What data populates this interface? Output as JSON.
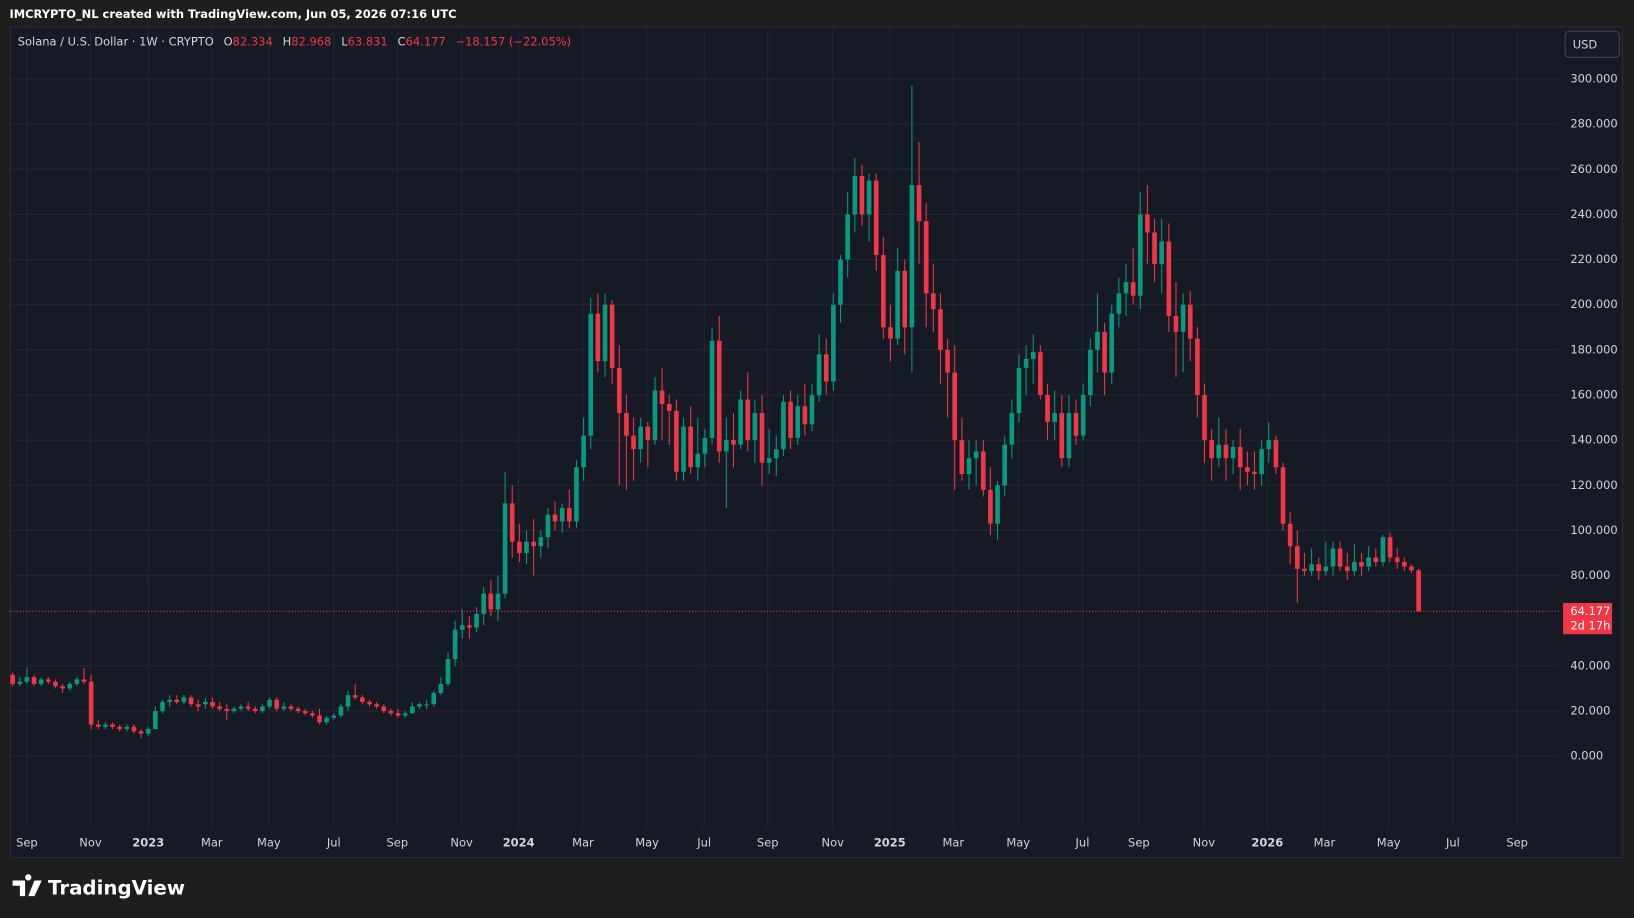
{
  "header": {
    "credit": "IMCRYPTO_NL created with TradingView.com, Jun 05, 2026 07:16 UTC",
    "logo": "TradingView"
  },
  "chart_data": {
    "type": "candlestick",
    "title": "Solana / U.S. Dollar · 1W · CRYPTO",
    "ohlc_letters": [
      "O",
      "H",
      "L",
      "C"
    ],
    "change": "−18.157 (−22.05%)",
    "currency": "USD",
    "countdown": "2d 17h",
    "up_color": "#089981",
    "down_color": "#f23645",
    "grid": true,
    "xlim": [
      -0.3,
      216.8
    ],
    "ylim": [
      -32,
      323
    ],
    "xticks": [
      {
        "value": 2.0,
        "label": "Sep"
      },
      {
        "value": 10.9,
        "label": "Nov"
      },
      {
        "value": 19.0,
        "label": "2023"
      },
      {
        "value": 27.9,
        "label": "Mar"
      },
      {
        "value": 35.9,
        "label": "May"
      },
      {
        "value": 45.0,
        "label": "Jul"
      },
      {
        "value": 53.9,
        "label": "Sep"
      },
      {
        "value": 62.9,
        "label": "Nov"
      },
      {
        "value": 70.9,
        "label": "2024"
      },
      {
        "value": 79.9,
        "label": "Mar"
      },
      {
        "value": 88.9,
        "label": "May"
      },
      {
        "value": 96.9,
        "label": "Jul"
      },
      {
        "value": 105.8,
        "label": "Sep"
      },
      {
        "value": 114.9,
        "label": "Nov"
      },
      {
        "value": 122.9,
        "label": "2025"
      },
      {
        "value": 131.8,
        "label": "Mar"
      },
      {
        "value": 140.9,
        "label": "May"
      },
      {
        "value": 149.9,
        "label": "Jul"
      },
      {
        "value": 157.8,
        "label": "Sep"
      },
      {
        "value": 166.9,
        "label": "Nov"
      },
      {
        "value": 175.8,
        "label": "2026"
      },
      {
        "value": 183.8,
        "label": "Mar"
      },
      {
        "value": 192.8,
        "label": "May"
      },
      {
        "value": 201.8,
        "label": "Jul"
      },
      {
        "value": 210.8,
        "label": "Sep"
      }
    ],
    "yticks": [
      {
        "value": 0,
        "label": "0.000"
      },
      {
        "value": 20,
        "label": "20.000"
      },
      {
        "value": 40,
        "label": "40.000"
      },
      {
        "value": 80,
        "label": "80.000"
      },
      {
        "value": 100,
        "label": "100.000"
      },
      {
        "value": 120,
        "label": "120.000"
      },
      {
        "value": 140,
        "label": "140.000"
      },
      {
        "value": 160,
        "label": "160.000"
      },
      {
        "value": 180,
        "label": "180.000"
      },
      {
        "value": 200,
        "label": "200.000"
      },
      {
        "value": 220,
        "label": "220.000"
      },
      {
        "value": 240,
        "label": "240.000"
      },
      {
        "value": 260,
        "label": "260.000"
      },
      {
        "value": 280,
        "label": "280.000"
      },
      {
        "value": 300,
        "label": "300.000"
      }
    ],
    "candles": [
      [
        36,
        37,
        31,
        32
      ],
      [
        32,
        35,
        31,
        33
      ],
      [
        33,
        39,
        32,
        35
      ],
      [
        35,
        36,
        31,
        32
      ],
      [
        32,
        35,
        31,
        34
      ],
      [
        34,
        35,
        32,
        33
      ],
      [
        33,
        34,
        30,
        31
      ],
      [
        31,
        32,
        28,
        30
      ],
      [
        30,
        33,
        29,
        32
      ],
      [
        32,
        35,
        31,
        34
      ],
      [
        34,
        39,
        32,
        33
      ],
      [
        33,
        36,
        12,
        14
      ],
      [
        14,
        16,
        12,
        13
      ],
      [
        13,
        15,
        12,
        14
      ],
      [
        14,
        15,
        12,
        13
      ],
      [
        13,
        14,
        11,
        12
      ],
      [
        12,
        14,
        11,
        13
      ],
      [
        13,
        14,
        10,
        11
      ],
      [
        11,
        12,
        8,
        10
      ],
      [
        10,
        13,
        9,
        12
      ],
      [
        12,
        22,
        12,
        20
      ],
      [
        20,
        25,
        19,
        24
      ],
      [
        24,
        27,
        22,
        25
      ],
      [
        25,
        27,
        23,
        24
      ],
      [
        24,
        27,
        23,
        26
      ],
      [
        26,
        27,
        22,
        23
      ],
      [
        23,
        25,
        20,
        22
      ],
      [
        23,
        26,
        21,
        24
      ],
      [
        24,
        26,
        21,
        22
      ],
      [
        22,
        24,
        20,
        21
      ],
      [
        21,
        23,
        16,
        20
      ],
      [
        20,
        22,
        19,
        21
      ],
      [
        21,
        23,
        20,
        22
      ],
      [
        22,
        24,
        20,
        21
      ],
      [
        21,
        22,
        19,
        20
      ],
      [
        20,
        23,
        19,
        22
      ],
      [
        22,
        26,
        21,
        25
      ],
      [
        25,
        26,
        20,
        21
      ],
      [
        21,
        24,
        20,
        22
      ],
      [
        22,
        23,
        20,
        21
      ],
      [
        21,
        22,
        19,
        20
      ],
      [
        20,
        21,
        18,
        19
      ],
      [
        19,
        20,
        17,
        18
      ],
      [
        18,
        21,
        14,
        15
      ],
      [
        15,
        18,
        14,
        17
      ],
      [
        17,
        19,
        16,
        18
      ],
      [
        18,
        23,
        17,
        22
      ],
      [
        22,
        29,
        20,
        27
      ],
      [
        27,
        32,
        25,
        26
      ],
      [
        26,
        27,
        23,
        24
      ],
      [
        24,
        25,
        22,
        23
      ],
      [
        23,
        24,
        21,
        22
      ],
      [
        22,
        23,
        19,
        20
      ],
      [
        20,
        21,
        18,
        19
      ],
      [
        19,
        21,
        17,
        18
      ],
      [
        18,
        20,
        17,
        19
      ],
      [
        19,
        24,
        19,
        22
      ],
      [
        22,
        24,
        21,
        23
      ],
      [
        23,
        25,
        21,
        23
      ],
      [
        23,
        29,
        22,
        28
      ],
      [
        28,
        35,
        27,
        32
      ],
      [
        32,
        46,
        31,
        43
      ],
      [
        43,
        60,
        40,
        56
      ],
      [
        56,
        65,
        52,
        58
      ],
      [
        58,
        62,
        52,
        57
      ],
      [
        57,
        66,
        55,
        63
      ],
      [
        63,
        75,
        58,
        72
      ],
      [
        72,
        78,
        62,
        65
      ],
      [
        65,
        80,
        60,
        72
      ],
      [
        72,
        126,
        70,
        112
      ],
      [
        112,
        120,
        88,
        95
      ],
      [
        95,
        103,
        86,
        90
      ],
      [
        90,
        100,
        85,
        95
      ],
      [
        95,
        105,
        80,
        93
      ],
      [
        93,
        100,
        88,
        97
      ],
      [
        97,
        110,
        92,
        107
      ],
      [
        107,
        113,
        100,
        104
      ],
      [
        104,
        112,
        99,
        110
      ],
      [
        110,
        118,
        101,
        104
      ],
      [
        104,
        131,
        101,
        128
      ],
      [
        128,
        150,
        122,
        142
      ],
      [
        142,
        203,
        136,
        196
      ],
      [
        196,
        205,
        170,
        175
      ],
      [
        175,
        205,
        168,
        200
      ],
      [
        200,
        202,
        165,
        172
      ],
      [
        172,
        182,
        120,
        152
      ],
      [
        152,
        160,
        118,
        142
      ],
      [
        142,
        150,
        122,
        136
      ],
      [
        136,
        150,
        130,
        146
      ],
      [
        146,
        148,
        128,
        140
      ],
      [
        140,
        168,
        138,
        162
      ],
      [
        162,
        172,
        140,
        156
      ],
      [
        156,
        160,
        138,
        153
      ],
      [
        153,
        158,
        122,
        126
      ],
      [
        126,
        150,
        122,
        146
      ],
      [
        146,
        155,
        125,
        128
      ],
      [
        128,
        150,
        122,
        134
      ],
      [
        134,
        145,
        128,
        141
      ],
      [
        141,
        190,
        138,
        184
      ],
      [
        184,
        195,
        130,
        135
      ],
      [
        135,
        150,
        110,
        140
      ],
      [
        140,
        152,
        128,
        138
      ],
      [
        138,
        162,
        136,
        158
      ],
      [
        158,
        170,
        135,
        140
      ],
      [
        140,
        158,
        130,
        152
      ],
      [
        152,
        160,
        120,
        130
      ],
      [
        130,
        145,
        125,
        132
      ],
      [
        132,
        142,
        124,
        136
      ],
      [
        136,
        160,
        133,
        157
      ],
      [
        157,
        162,
        136,
        141
      ],
      [
        141,
        160,
        138,
        155
      ],
      [
        155,
        165,
        142,
        147
      ],
      [
        147,
        165,
        144,
        160
      ],
      [
        160,
        187,
        157,
        178
      ],
      [
        178,
        185,
        160,
        166
      ],
      [
        166,
        205,
        162,
        200
      ],
      [
        200,
        222,
        192,
        220
      ],
      [
        220,
        250,
        212,
        240
      ],
      [
        240,
        265,
        232,
        257
      ],
      [
        257,
        262,
        235,
        240
      ],
      [
        240,
        258,
        228,
        255
      ],
      [
        255,
        258,
        215,
        222
      ],
      [
        222,
        230,
        185,
        190
      ],
      [
        190,
        200,
        175,
        185
      ],
      [
        185,
        225,
        182,
        215
      ],
      [
        215,
        220,
        178,
        190
      ],
      [
        190,
        297,
        170,
        253
      ],
      [
        253,
        272,
        218,
        237
      ],
      [
        237,
        245,
        190,
        205
      ],
      [
        205,
        218,
        188,
        198
      ],
      [
        198,
        205,
        165,
        180
      ],
      [
        180,
        185,
        150,
        170
      ],
      [
        170,
        182,
        118,
        140
      ],
      [
        140,
        150,
        122,
        125
      ],
      [
        125,
        140,
        118,
        132
      ],
      [
        132,
        140,
        120,
        135
      ],
      [
        135,
        140,
        115,
        118
      ],
      [
        118,
        128,
        98,
        103
      ],
      [
        103,
        122,
        96,
        120
      ],
      [
        120,
        142,
        115,
        138
      ],
      [
        138,
        158,
        132,
        152
      ],
      [
        152,
        178,
        148,
        172
      ],
      [
        172,
        182,
        160,
        176
      ],
      [
        176,
        187,
        165,
        179
      ],
      [
        179,
        182,
        158,
        160
      ],
      [
        160,
        165,
        140,
        148
      ],
      [
        148,
        162,
        140,
        152
      ],
      [
        152,
        160,
        128,
        132
      ],
      [
        132,
        160,
        128,
        152
      ],
      [
        152,
        158,
        138,
        142
      ],
      [
        142,
        165,
        140,
        160
      ],
      [
        160,
        185,
        155,
        180
      ],
      [
        180,
        205,
        170,
        188
      ],
      [
        188,
        192,
        160,
        170
      ],
      [
        170,
        200,
        165,
        196
      ],
      [
        196,
        212,
        190,
        205
      ],
      [
        205,
        218,
        195,
        210
      ],
      [
        210,
        225,
        200,
        204
      ],
      [
        204,
        250,
        198,
        240
      ],
      [
        240,
        253,
        218,
        232
      ],
      [
        232,
        238,
        210,
        218
      ],
      [
        218,
        238,
        205,
        228
      ],
      [
        228,
        236,
        188,
        195
      ],
      [
        195,
        210,
        168,
        188
      ],
      [
        188,
        205,
        170,
        200
      ],
      [
        200,
        206,
        175,
        185
      ],
      [
        185,
        190,
        150,
        160
      ],
      [
        160,
        165,
        130,
        140
      ],
      [
        140,
        145,
        122,
        132
      ],
      [
        132,
        150,
        128,
        138
      ],
      [
        138,
        145,
        122,
        132
      ],
      [
        132,
        140,
        125,
        137
      ],
      [
        137,
        145,
        118,
        128
      ],
      [
        128,
        135,
        120,
        126
      ],
      [
        126,
        135,
        118,
        125
      ],
      [
        125,
        140,
        120,
        136
      ],
      [
        136,
        148,
        130,
        140
      ],
      [
        140,
        142,
        125,
        128
      ],
      [
        128,
        130,
        100,
        103
      ],
      [
        103,
        108,
        85,
        93
      ],
      [
        93,
        100,
        68,
        83
      ],
      [
        83,
        90,
        80,
        82
      ],
      [
        82,
        92,
        80,
        85
      ],
      [
        85,
        88,
        78,
        82
      ],
      [
        82,
        95,
        80,
        84
      ],
      [
        84,
        95,
        80,
        92
      ],
      [
        92,
        95,
        82,
        84
      ],
      [
        84,
        90,
        78,
        82
      ],
      [
        82,
        94,
        80,
        86
      ],
      [
        86,
        90,
        80,
        84
      ],
      [
        84,
        93,
        82,
        88
      ],
      [
        88,
        92,
        84,
        86
      ],
      [
        86,
        98,
        84,
        97
      ],
      [
        97,
        99,
        86,
        88
      ],
      [
        88,
        92,
        83,
        86
      ],
      [
        86,
        88,
        82,
        84
      ],
      [
        84,
        85,
        81,
        82.334
      ],
      [
        82.334,
        82.968,
        63.831,
        64.177
      ]
    ]
  }
}
